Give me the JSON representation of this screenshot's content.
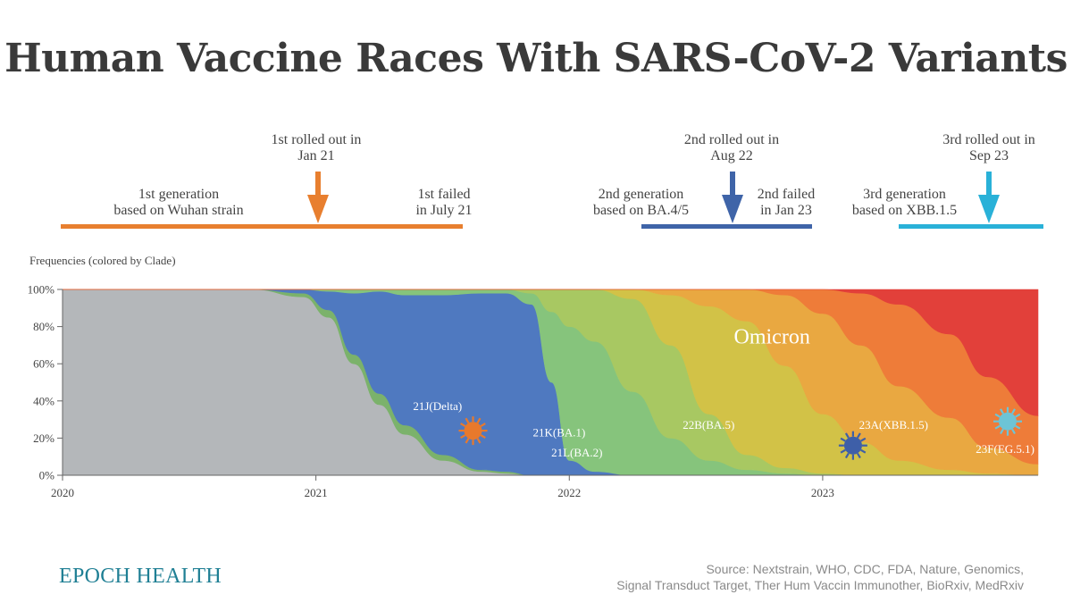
{
  "title": "Human Vaccine Races With SARS-CoV-2 Variants",
  "timeline": {
    "gen1": {
      "label_l1": "1st generation",
      "label_l2": "based on Wuhan strain",
      "rollout_l1": "1st rolled out in",
      "rollout_l2": "Jan 21",
      "failed_l1": "1st failed",
      "failed_l2": "in July 21",
      "color": "#e87f2f"
    },
    "gen2": {
      "label_l1": "2nd generation",
      "label_l2": "based on BA.4/5",
      "rollout_l1": "2nd rolled out in",
      "rollout_l2": "Aug 22",
      "failed_l1": "2nd failed",
      "failed_l2": "in Jan 23",
      "color": "#3f64a8"
    },
    "gen3": {
      "label_l1": "3rd generation",
      "label_l2": "based on XBB.1.5",
      "rollout_l1": "3rd rolled out in",
      "rollout_l2": "Sep 23",
      "color": "#29b1d8"
    }
  },
  "chart_data": {
    "type": "area",
    "stacked": true,
    "ylabel": "Frequencies (colored by Clade)",
    "yticks": [
      "0%",
      "20%",
      "40%",
      "60%",
      "80%",
      "100%"
    ],
    "ylim": [
      0,
      100
    ],
    "xticks": [
      "2020",
      "2021",
      "2022",
      "2023"
    ],
    "x": [
      2020.0,
      2020.75,
      2020.95,
      2021.05,
      2021.15,
      2021.25,
      2021.35,
      2021.5,
      2021.65,
      2021.75,
      2021.85,
      2021.93,
      2022.0,
      2022.1,
      2022.25,
      2022.4,
      2022.55,
      2022.7,
      2022.85,
      2023.0,
      2023.15,
      2023.3,
      2023.5,
      2023.65,
      2023.85
    ],
    "series": [
      {
        "color": "#b4b7ba",
        "values": [
          100,
          100,
          96,
          85,
          60,
          38,
          22,
          8,
          2,
          1,
          0,
          0,
          0,
          0,
          0,
          0,
          0,
          0,
          0,
          0,
          0,
          0,
          0,
          0,
          0
        ]
      },
      {
        "color": "#7bb26b",
        "values": [
          0,
          0,
          2,
          4,
          5,
          6,
          5,
          3,
          1,
          1,
          0,
          0,
          0,
          0,
          0,
          0,
          0,
          0,
          0,
          0,
          0,
          0,
          0,
          0,
          0
        ]
      },
      {
        "color": "#4f79c0",
        "values": [
          0,
          0,
          2,
          10,
          33,
          55,
          70,
          86,
          95,
          96,
          92,
          50,
          8,
          2,
          0,
          0,
          0,
          0,
          0,
          0,
          0,
          0,
          0,
          0,
          0
        ]
      },
      {
        "color": "#86c47c",
        "values": [
          0,
          0,
          0,
          1,
          2,
          1,
          3,
          3,
          2,
          2,
          6,
          38,
          72,
          70,
          45,
          20,
          8,
          3,
          1,
          0,
          0,
          0,
          0,
          0,
          0
        ]
      },
      {
        "color": "#a8c862",
        "values": [
          0,
          0,
          0,
          0,
          0,
          0,
          0,
          0,
          0,
          0,
          2,
          12,
          20,
          28,
          50,
          50,
          25,
          8,
          3,
          1,
          0,
          0,
          0,
          0,
          0
        ]
      },
      {
        "color": "#d2c247",
        "values": [
          0,
          0,
          0,
          0,
          0,
          0,
          0,
          0,
          0,
          0,
          0,
          0,
          0,
          0,
          5,
          27,
          58,
          72,
          55,
          32,
          18,
          8,
          3,
          1,
          0
        ]
      },
      {
        "color": "#e9a841",
        "values": [
          0,
          0,
          0,
          0,
          0,
          0,
          0,
          0,
          0,
          0,
          0,
          0,
          0,
          0,
          0,
          3,
          9,
          17,
          38,
          54,
          52,
          40,
          28,
          14,
          6
        ]
      },
      {
        "color": "#ee7c39",
        "values": [
          0,
          0,
          0,
          0,
          0,
          0,
          0,
          0,
          0,
          0,
          0,
          0,
          0,
          0,
          0,
          0,
          0,
          0,
          3,
          13,
          28,
          44,
          45,
          38,
          26
        ]
      },
      {
        "color": "#e2403a",
        "values": [
          0,
          0,
          0,
          0,
          0,
          0,
          0,
          0,
          0,
          0,
          0,
          0,
          0,
          0,
          0,
          0,
          0,
          0,
          0,
          0,
          2,
          8,
          24,
          47,
          68
        ]
      }
    ],
    "annotations": [
      {
        "text": "Omicron",
        "x": 2022.8,
        "y": 71,
        "size": 24
      },
      {
        "text": "21J(Delta)",
        "x": 2021.48,
        "y": 35,
        "size": 13
      },
      {
        "text": "21K(BA.1)",
        "x": 2021.96,
        "y": 21,
        "size": 13
      },
      {
        "text": "21L(BA.2)",
        "x": 2022.03,
        "y": 10,
        "size": 13
      },
      {
        "text": "22B(BA.5)",
        "x": 2022.55,
        "y": 25,
        "size": 13
      },
      {
        "text": "23A(XBB.1.5)",
        "x": 2023.28,
        "y": 25,
        "size": 13
      },
      {
        "text": "23F(EG.5.1)",
        "x": 2023.72,
        "y": 12,
        "size": 13
      }
    ],
    "virus_markers": [
      {
        "x": 2021.62,
        "y": 24,
        "color": "#e8792c"
      },
      {
        "x": 2023.12,
        "y": 16,
        "color": "#3e5fa8"
      },
      {
        "x": 2023.73,
        "y": 29,
        "color": "#6dc4d6"
      }
    ]
  },
  "footer": {
    "brand": "EPOCH HEALTH",
    "source_l1": "Source: Nextstrain, WHO, CDC, FDA, Nature, Genomics,",
    "source_l2": "Signal Transduct Target, Ther Hum Vaccin Immunother, BioRxiv, MedRxiv"
  }
}
